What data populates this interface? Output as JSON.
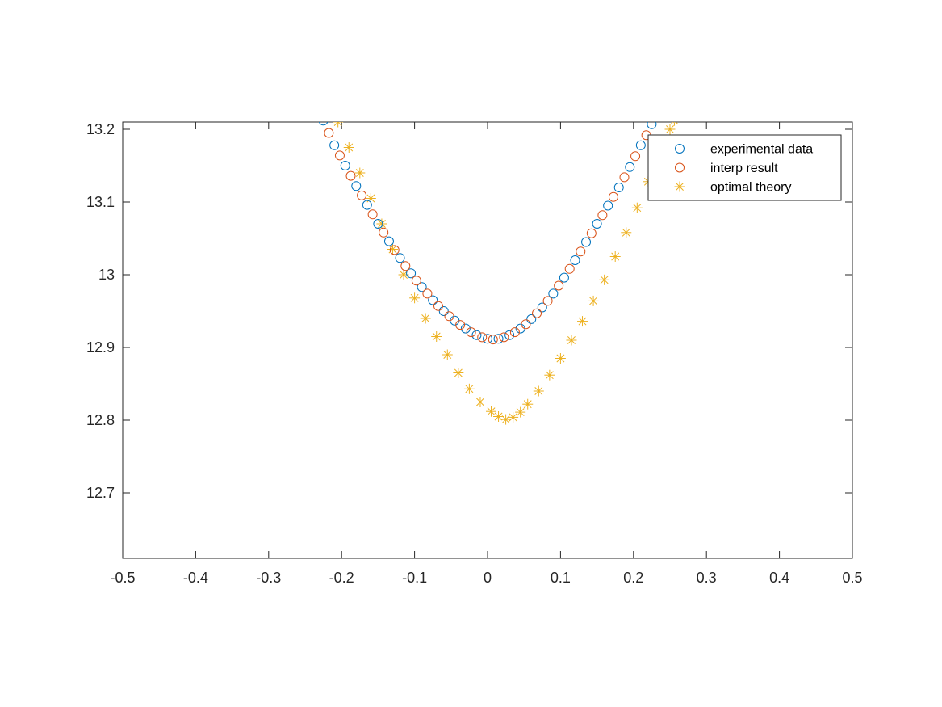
{
  "chart_data": {
    "type": "scatter",
    "title": "",
    "xlabel": "",
    "ylabel": "",
    "xlim": [
      -0.5,
      0.5
    ],
    "ylim": [
      12.61,
      13.21
    ],
    "xticks": [
      "-0.5",
      "-0.4",
      "-0.3",
      "-0.2",
      "-0.1",
      "0",
      "0.1",
      "0.2",
      "0.3",
      "0.4",
      "0.5"
    ],
    "yticks": [
      "12.7",
      "12.8",
      "12.9",
      "13",
      "13.1",
      "13.2"
    ],
    "grid": false,
    "legend_position": "top-right",
    "series": [
      {
        "name": "experimental data",
        "marker": "circle",
        "color": "#0072BD",
        "points": [
          [
            -0.225,
            13.212
          ],
          [
            -0.21,
            13.178
          ],
          [
            -0.195,
            13.15
          ],
          [
            -0.18,
            13.122
          ],
          [
            -0.165,
            13.096
          ],
          [
            -0.15,
            13.07
          ],
          [
            -0.135,
            13.046
          ],
          [
            -0.12,
            13.023
          ],
          [
            -0.105,
            13.002
          ],
          [
            -0.09,
            12.983
          ],
          [
            -0.075,
            12.965
          ],
          [
            -0.06,
            12.95
          ],
          [
            -0.045,
            12.937
          ],
          [
            -0.03,
            12.926
          ],
          [
            -0.015,
            12.917
          ],
          [
            0.0,
            12.912
          ],
          [
            0.015,
            12.912
          ],
          [
            0.03,
            12.917
          ],
          [
            0.045,
            12.926
          ],
          [
            0.06,
            12.939
          ],
          [
            0.075,
            12.955
          ],
          [
            0.09,
            12.974
          ],
          [
            0.105,
            12.996
          ],
          [
            0.12,
            13.02
          ],
          [
            0.135,
            13.045
          ],
          [
            0.15,
            13.07
          ],
          [
            0.165,
            13.095
          ],
          [
            0.18,
            13.12
          ],
          [
            0.195,
            13.148
          ],
          [
            0.21,
            13.178
          ],
          [
            0.225,
            13.207
          ]
        ]
      },
      {
        "name": "interp result",
        "marker": "circle",
        "color": "#D95319",
        "points": [
          [
            -0.2175,
            13.195
          ],
          [
            -0.2025,
            13.164
          ],
          [
            -0.1875,
            13.136
          ],
          [
            -0.1725,
            13.109
          ],
          [
            -0.1575,
            13.083
          ],
          [
            -0.1425,
            13.058
          ],
          [
            -0.1275,
            13.034
          ],
          [
            -0.1125,
            13.012
          ],
          [
            -0.0975,
            12.992
          ],
          [
            -0.0825,
            12.974
          ],
          [
            -0.0675,
            12.957
          ],
          [
            -0.0525,
            12.943
          ],
          [
            -0.0375,
            12.931
          ],
          [
            -0.0225,
            12.921
          ],
          [
            -0.0075,
            12.914
          ],
          [
            0.0075,
            12.911
          ],
          [
            0.0225,
            12.914
          ],
          [
            0.0375,
            12.921
          ],
          [
            0.0525,
            12.932
          ],
          [
            0.0675,
            12.947
          ],
          [
            0.0825,
            12.964
          ],
          [
            0.0975,
            12.985
          ],
          [
            0.1125,
            13.008
          ],
          [
            0.1275,
            13.032
          ],
          [
            0.1425,
            13.057
          ],
          [
            0.1575,
            13.082
          ],
          [
            0.1725,
            13.107
          ],
          [
            0.1875,
            13.134
          ],
          [
            0.2025,
            13.163
          ],
          [
            0.2175,
            13.192
          ]
        ]
      },
      {
        "name": "optimal theory",
        "marker": "asterisk",
        "color": "#EDB120",
        "points": [
          [
            -0.205,
            13.21
          ],
          [
            -0.19,
            13.175
          ],
          [
            -0.175,
            13.14
          ],
          [
            -0.16,
            13.105
          ],
          [
            -0.145,
            13.07
          ],
          [
            -0.13,
            13.035
          ],
          [
            -0.115,
            13.0
          ],
          [
            -0.1,
            12.968
          ],
          [
            -0.085,
            12.94
          ],
          [
            -0.07,
            12.915
          ],
          [
            -0.055,
            12.89
          ],
          [
            -0.04,
            12.865
          ],
          [
            -0.025,
            12.843
          ],
          [
            -0.01,
            12.825
          ],
          [
            0.005,
            12.812
          ],
          [
            0.015,
            12.805
          ],
          [
            0.025,
            12.801
          ],
          [
            0.035,
            12.804
          ],
          [
            0.045,
            12.811
          ],
          [
            0.055,
            12.822
          ],
          [
            0.07,
            12.84
          ],
          [
            0.085,
            12.862
          ],
          [
            0.1,
            12.885
          ],
          [
            0.115,
            12.91
          ],
          [
            0.13,
            12.936
          ],
          [
            0.145,
            12.964
          ],
          [
            0.16,
            12.993
          ],
          [
            0.175,
            13.025
          ],
          [
            0.19,
            13.058
          ],
          [
            0.205,
            13.092
          ],
          [
            0.22,
            13.128
          ],
          [
            0.235,
            13.165
          ],
          [
            0.25,
            13.2
          ],
          [
            0.256,
            13.212
          ]
        ]
      }
    ]
  }
}
